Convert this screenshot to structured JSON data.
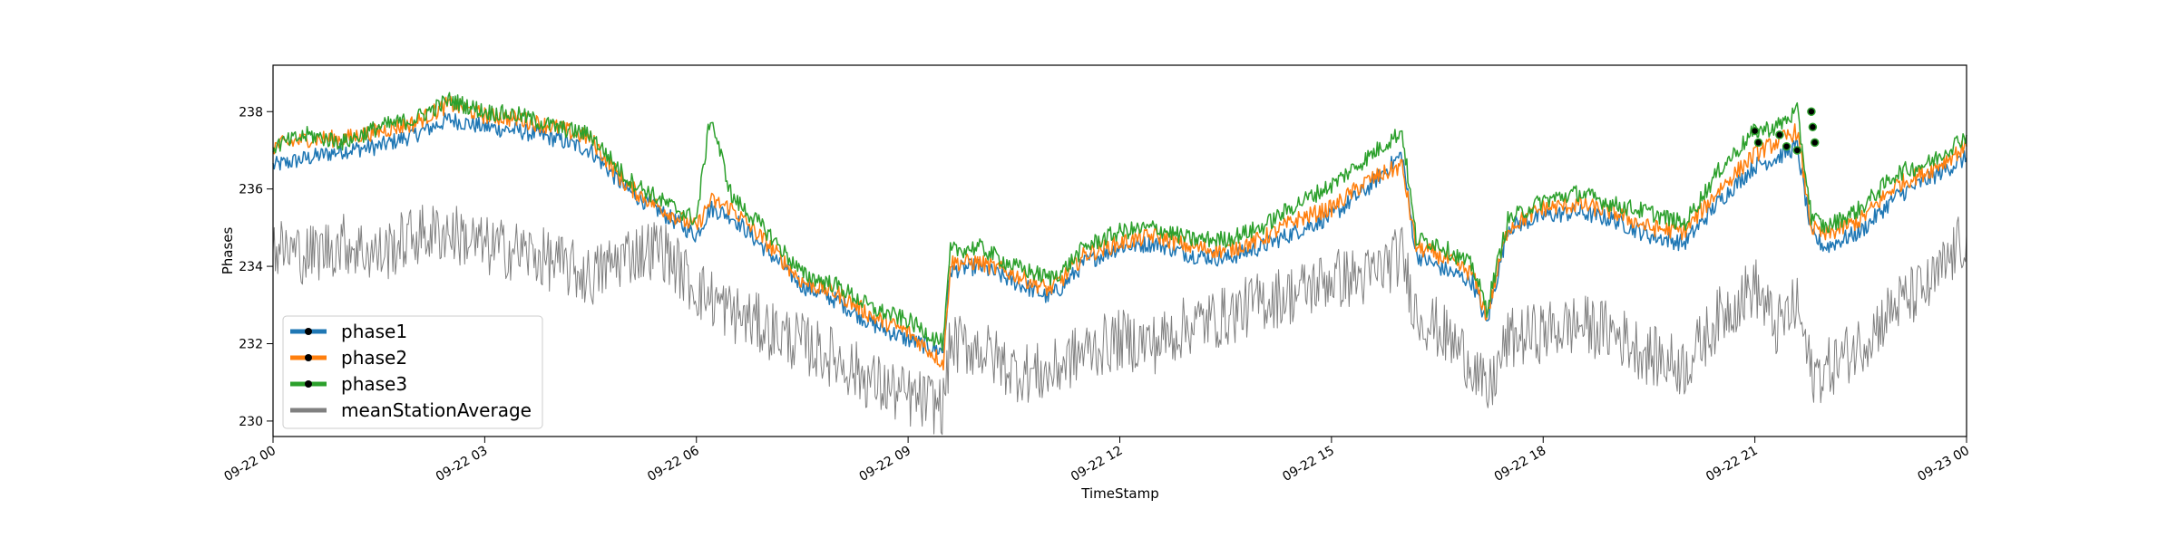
{
  "chart_data": {
    "type": "line",
    "title": "",
    "xlabel": "TimeStamp",
    "ylabel": "Phases",
    "x_range": [
      "09-22 00:00",
      "09-23 00:00"
    ],
    "ylim": [
      229.6,
      239.2
    ],
    "x_ticks": [
      "09-22 00",
      "09-22 03",
      "09-22 06",
      "09-22 09",
      "09-22 12",
      "09-22 15",
      "09-22 18",
      "09-22 21",
      "09-23 00"
    ],
    "y_ticks": [
      "230",
      "232",
      "234",
      "236",
      "238"
    ],
    "grid": false,
    "legend_position": "lower-left",
    "hours": [
      0,
      0.5,
      1,
      1.5,
      2,
      2.5,
      3,
      3.5,
      4,
      4.5,
      5,
      5.5,
      6,
      6.2,
      6.5,
      7,
      7.5,
      8,
      8.5,
      9,
      9.5,
      9.6,
      10,
      10.5,
      11,
      11.2,
      11.5,
      12,
      12.5,
      13,
      13.5,
      14,
      14.5,
      15,
      15.5,
      16,
      16.2,
      16.5,
      17,
      17.2,
      17.5,
      18,
      18.5,
      19,
      19.5,
      20,
      20.5,
      21,
      21.3,
      21.6,
      21.8,
      22,
      22.5,
      23,
      23.5,
      24
    ],
    "series": [
      {
        "name": "phase1",
        "color": "#1f77b4",
        "values": [
          236.6,
          236.8,
          237.0,
          237.1,
          237.4,
          237.8,
          237.6,
          237.5,
          237.3,
          237.0,
          236.0,
          235.4,
          234.8,
          235.5,
          235.3,
          234.4,
          233.5,
          233.1,
          232.5,
          232.1,
          231.8,
          233.9,
          234.0,
          233.6,
          233.2,
          233.5,
          234.1,
          234.5,
          234.6,
          234.3,
          234.2,
          234.5,
          234.9,
          235.3,
          236.0,
          236.9,
          234.3,
          234.0,
          233.6,
          232.5,
          235.0,
          235.3,
          235.4,
          235.2,
          234.8,
          234.6,
          235.7,
          236.6,
          236.8,
          237.1,
          234.8,
          234.5,
          234.9,
          235.8,
          236.3,
          236.8
        ]
      },
      {
        "name": "phase2",
        "color": "#ff7f0e",
        "values": [
          237.1,
          237.3,
          237.3,
          237.5,
          237.7,
          238.2,
          237.9,
          237.8,
          237.6,
          237.3,
          236.1,
          235.5,
          235.0,
          235.7,
          235.5,
          234.6,
          233.6,
          233.3,
          232.7,
          232.3,
          231.5,
          234.1,
          234.1,
          233.8,
          233.4,
          233.7,
          234.3,
          234.6,
          234.8,
          234.5,
          234.4,
          234.7,
          235.2,
          235.5,
          236.2,
          236.6,
          234.5,
          234.3,
          233.8,
          232.7,
          235.0,
          235.5,
          235.6,
          235.4,
          235.0,
          234.9,
          236.0,
          236.9,
          237.2,
          237.5,
          235.0,
          234.8,
          235.2,
          236.1,
          236.5,
          237.1
        ]
      },
      {
        "name": "phase3",
        "color": "#2ca02c",
        "values": [
          237.1,
          237.4,
          237.2,
          237.6,
          237.8,
          238.3,
          238.0,
          237.9,
          237.6,
          237.4,
          236.3,
          235.7,
          235.2,
          237.9,
          235.8,
          234.9,
          233.8,
          233.5,
          232.9,
          232.6,
          232.0,
          234.4,
          234.5,
          234.0,
          233.7,
          233.9,
          234.5,
          234.9,
          235.0,
          234.7,
          234.7,
          235.0,
          235.6,
          236.1,
          236.8,
          237.5,
          234.7,
          234.6,
          234.0,
          232.9,
          235.2,
          235.7,
          235.9,
          235.6,
          235.4,
          235.1,
          236.5,
          237.5,
          237.6,
          238.0,
          235.3,
          235.0,
          235.5,
          236.4,
          236.7,
          237.4
        ]
      },
      {
        "name": "meanStationAverage",
        "color": "#808080",
        "values": [
          234.5,
          234.3,
          234.6,
          234.3,
          234.8,
          234.9,
          234.5,
          234.4,
          234.1,
          233.7,
          234.3,
          234.5,
          233.4,
          233.2,
          232.8,
          232.4,
          232.0,
          231.6,
          231.0,
          230.6,
          230.4,
          232.0,
          231.9,
          231.3,
          231.2,
          231.5,
          231.8,
          232.1,
          232.0,
          232.5,
          232.7,
          233.1,
          233.3,
          233.7,
          233.7,
          234.3,
          232.8,
          232.4,
          231.5,
          230.6,
          232.1,
          232.3,
          232.5,
          232.3,
          231.7,
          231.4,
          232.7,
          233.5,
          232.4,
          233.0,
          231.2,
          231.3,
          232.0,
          233.0,
          233.5,
          234.8
        ]
      }
    ],
    "markers": [
      {
        "hour": 21.0,
        "value": 237.5
      },
      {
        "hour": 21.05,
        "value": 237.2
      },
      {
        "hour": 21.35,
        "value": 237.4
      },
      {
        "hour": 21.45,
        "value": 237.1
      },
      {
        "hour": 21.6,
        "value": 237.0
      },
      {
        "hour": 21.8,
        "value": 238.0
      },
      {
        "hour": 21.82,
        "value": 237.6
      },
      {
        "hour": 21.85,
        "value": 237.2
      }
    ]
  }
}
